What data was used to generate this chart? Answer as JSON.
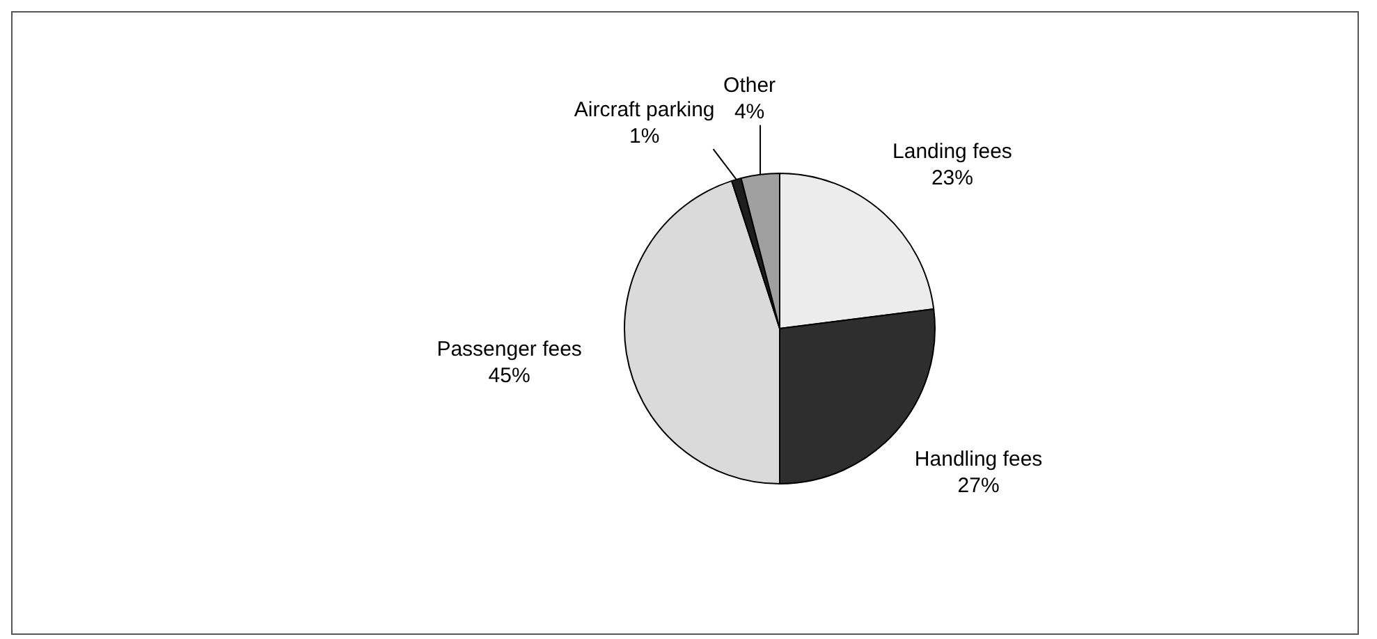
{
  "chart_data": {
    "type": "pie",
    "categories": [
      "Landing fees",
      "Handling fees",
      "Passenger fees",
      "Aircraft parking",
      "Other"
    ],
    "values": [
      23,
      27,
      45,
      1,
      4
    ],
    "colors": [
      "#ececec",
      "#2e2e2e",
      "#dadada",
      "#1e1e1e",
      "#a0a0a0"
    ],
    "value_labels": [
      "23%",
      "27%",
      "45%",
      "1%",
      "4%"
    ],
    "legend": false
  }
}
